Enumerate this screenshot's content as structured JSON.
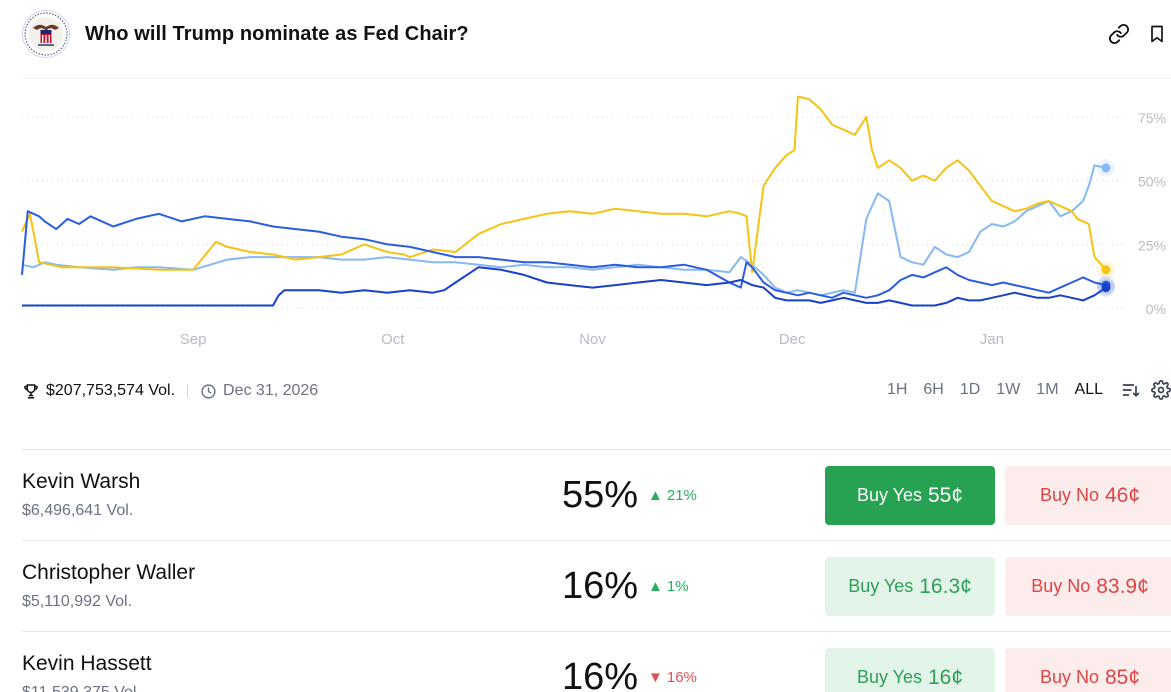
{
  "market": {
    "title": "Who will Trump nominate as Fed Chair?",
    "logo_icon": "federal-reserve-seal-icon",
    "link_icon": "link-icon",
    "bookmark_icon": "bookmark-icon"
  },
  "stats": {
    "volume": "$207,753,574 Vol.",
    "end_date": "Dec 31, 2026",
    "trophy_icon": "trophy-icon",
    "clock_icon": "clock-icon"
  },
  "ranges": [
    {
      "label": "1H",
      "active": false
    },
    {
      "label": "6H",
      "active": false
    },
    {
      "label": "1D",
      "active": false
    },
    {
      "label": "1W",
      "active": false
    },
    {
      "label": "1M",
      "active": false
    },
    {
      "label": "ALL",
      "active": true
    }
  ],
  "range_icons": [
    "sort-lines-icon",
    "settings-gear-icon"
  ],
  "candidates": [
    {
      "name": "Kevin Warsh",
      "volume": "$6,496,641 Vol.",
      "percent": "55%",
      "change": "21%",
      "direction": "up",
      "yes_label": "Buy Yes",
      "yes_price": "55¢",
      "no_label": "Buy No",
      "no_price": "46¢",
      "yes_solid": true
    },
    {
      "name": "Christopher Waller",
      "volume": "$5,110,992 Vol.",
      "percent": "16%",
      "change": "1%",
      "direction": "up",
      "yes_label": "Buy Yes",
      "yes_price": "16.3¢",
      "no_label": "Buy No",
      "no_price": "83.9¢",
      "yes_solid": false
    },
    {
      "name": "Kevin Hassett",
      "volume": "$11,539,375 Vol.",
      "percent": "16%",
      "change": "16%",
      "direction": "down",
      "yes_label": "Buy Yes",
      "yes_price": "16¢",
      "no_label": "Buy No",
      "no_price": "85¢",
      "yes_solid": false
    }
  ],
  "chart_data": {
    "type": "line",
    "x_tick_labels": [
      "Sep",
      "Oct",
      "Nov",
      "Dec",
      "Jan"
    ],
    "y_tick_labels": [
      "0%",
      "25%",
      "50%",
      "75%"
    ],
    "y_ticks": [
      0,
      25,
      50,
      75
    ],
    "ylim": [
      0,
      85
    ],
    "grid": true,
    "x_range": [
      0,
      100
    ],
    "x_ticks": [
      15,
      32.5,
      50,
      67.5,
      85
    ],
    "series": [
      {
        "color": "#86b8f4",
        "x": [
          0,
          1,
          2,
          3,
          5,
          8,
          10,
          12,
          15,
          18,
          20,
          22,
          24,
          26,
          28,
          30,
          32,
          34,
          36,
          38,
          40,
          42,
          44,
          46,
          48,
          50,
          52,
          54,
          56,
          58,
          60,
          62,
          63,
          64,
          65,
          66,
          67,
          68,
          69,
          70,
          71,
          72,
          73,
          74,
          75,
          76,
          77,
          78,
          79,
          80,
          81,
          82,
          83,
          84,
          85,
          86,
          87,
          88,
          89,
          90,
          91,
          92,
          93,
          93.5,
          94,
          95
        ],
        "y": [
          17,
          16,
          18,
          17,
          16,
          15,
          16,
          16,
          15,
          19,
          20,
          20,
          20,
          20,
          19,
          19,
          20,
          19,
          18,
          18,
          17,
          16,
          17,
          16,
          16,
          15,
          16,
          17,
          16,
          15,
          15,
          14,
          20,
          17,
          13,
          8,
          6,
          7,
          6,
          5,
          6,
          7,
          6,
          35,
          45,
          42,
          20,
          18,
          17,
          24,
          21,
          20,
          22,
          30,
          33,
          32,
          34,
          38,
          40,
          42,
          36,
          38,
          42,
          48,
          56,
          55
        ]
      },
      {
        "color": "#f5c215",
        "x": [
          0,
          0.7,
          1.5,
          2.5,
          3.5,
          5,
          8,
          12,
          15,
          17,
          18,
          20,
          22,
          24,
          26,
          28,
          30,
          32,
          33.5,
          34,
          36,
          38,
          40,
          42,
          44,
          46,
          48,
          50,
          52,
          54,
          56,
          58,
          60,
          62,
          63,
          63.5,
          64,
          65,
          66,
          67,
          67.7,
          68,
          69,
          70,
          71,
          72,
          73,
          74,
          74.5,
          75,
          76,
          77,
          78,
          79,
          80,
          81,
          82,
          83,
          84,
          85,
          86,
          87,
          88,
          89,
          90,
          91,
          92,
          92.5,
          93,
          93.5,
          94,
          95
        ],
        "y": [
          30,
          37,
          18,
          17,
          16,
          16,
          16,
          15,
          15,
          26,
          24,
          22,
          21,
          19,
          20,
          21,
          25,
          22,
          21,
          20,
          23,
          22,
          29,
          33,
          35,
          37,
          38,
          37,
          39,
          38,
          37,
          37,
          36,
          38,
          37,
          36,
          14,
          48,
          55,
          60,
          62,
          83,
          82,
          78,
          72,
          70,
          68,
          75,
          62,
          55,
          58,
          55,
          50,
          52,
          50,
          55,
          58,
          54,
          48,
          42,
          40,
          38,
          39,
          41,
          42,
          40,
          38,
          35,
          34,
          33,
          20,
          15
        ]
      },
      {
        "color": "#2a5de0",
        "x": [
          0,
          0.5,
          1,
          1.5,
          2,
          3,
          4,
          5,
          6,
          7,
          8,
          10,
          12,
          14,
          16,
          18,
          20,
          22,
          24,
          26,
          28,
          30,
          32,
          34,
          36,
          38,
          40,
          42,
          44,
          46,
          48,
          50,
          52,
          54,
          56,
          58,
          60,
          62,
          63,
          63.5,
          64,
          65,
          66,
          67,
          68,
          69,
          70,
          71,
          72,
          73,
          74,
          75,
          76,
          77,
          78,
          79,
          80,
          81,
          82,
          83,
          84,
          85,
          86,
          87,
          88,
          89,
          90,
          91,
          92,
          92.5,
          93,
          94,
          95
        ],
        "y": [
          13,
          38,
          37,
          36,
          34,
          31,
          35,
          33,
          36,
          34,
          32,
          35,
          37,
          34,
          36,
          35,
          34,
          32,
          31,
          30,
          28,
          27,
          25,
          24,
          22,
          20,
          20,
          19,
          18,
          18,
          17,
          16,
          17,
          16,
          16,
          17,
          15,
          10,
          8,
          18,
          16,
          10,
          7,
          6,
          5,
          6,
          5,
          4,
          6,
          5,
          4,
          5,
          7,
          11,
          13,
          12,
          14,
          16,
          13,
          11,
          10,
          9,
          10,
          9,
          8,
          7,
          6,
          8,
          10,
          11,
          12,
          10,
          9
        ]
      },
      {
        "color": "#1840c8",
        "x": [
          0,
          3,
          5,
          8,
          10,
          12,
          15,
          18,
          20,
          22,
          22.5,
          23,
          26,
          28,
          30,
          32,
          34,
          36,
          37,
          38,
          40,
          42,
          44,
          46,
          48,
          50,
          52,
          54,
          56,
          58,
          60,
          62,
          63,
          64,
          65,
          66,
          67,
          68,
          69,
          70,
          71,
          72,
          73,
          74,
          75,
          76,
          77,
          78,
          79,
          80,
          81,
          82,
          83,
          84,
          85,
          86,
          87,
          88,
          89,
          90,
          91,
          92,
          93,
          94,
          95
        ],
        "y": [
          1,
          1,
          1,
          1,
          1,
          1,
          1,
          1,
          1,
          1,
          5,
          7,
          7,
          6,
          7,
          6,
          7,
          6,
          7,
          10,
          16,
          15,
          13,
          10,
          9,
          8,
          9,
          10,
          11,
          10,
          9,
          10,
          11,
          9,
          8,
          4,
          3,
          3,
          3,
          2,
          3,
          4,
          3,
          2,
          2,
          3,
          2,
          1,
          1,
          1,
          2,
          4,
          3,
          3,
          4,
          5,
          6,
          5,
          4,
          4,
          5,
          4,
          3,
          5,
          8
        ]
      }
    ]
  }
}
